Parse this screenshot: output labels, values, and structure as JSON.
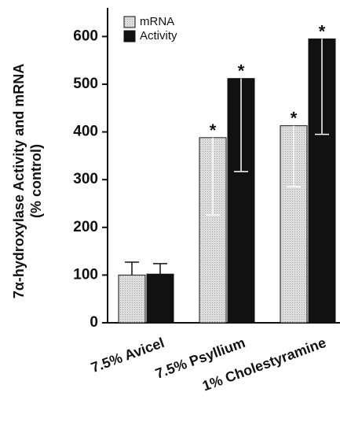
{
  "chart_data": {
    "type": "bar",
    "y_label": [
      "7α-hydroxylase Activity and mRNA",
      "(% control)"
    ],
    "categories": [
      "7.5% Avicel",
      "7.5% Psyllium",
      "1% Cholestyramine"
    ],
    "series": [
      {
        "name": "mRNA",
        "color": "#dcdcdc",
        "values": [
          100,
          388,
          413
        ],
        "errors": [
          27,
          162,
          128
        ],
        "annotations": [
          null,
          "*",
          "*"
        ]
      },
      {
        "name": "Activity",
        "color": "#111111",
        "values": [
          102,
          512,
          595
        ],
        "errors": [
          22,
          195,
          200
        ],
        "annotations": [
          null,
          "*",
          "*"
        ]
      }
    ],
    "error_direction": [
      "up",
      "down",
      "down"
    ],
    "ylim": [
      0,
      660
    ],
    "yticks": [
      0,
      100,
      200,
      300,
      400,
      500,
      600
    ],
    "legend": "top-left",
    "grid": false
  }
}
